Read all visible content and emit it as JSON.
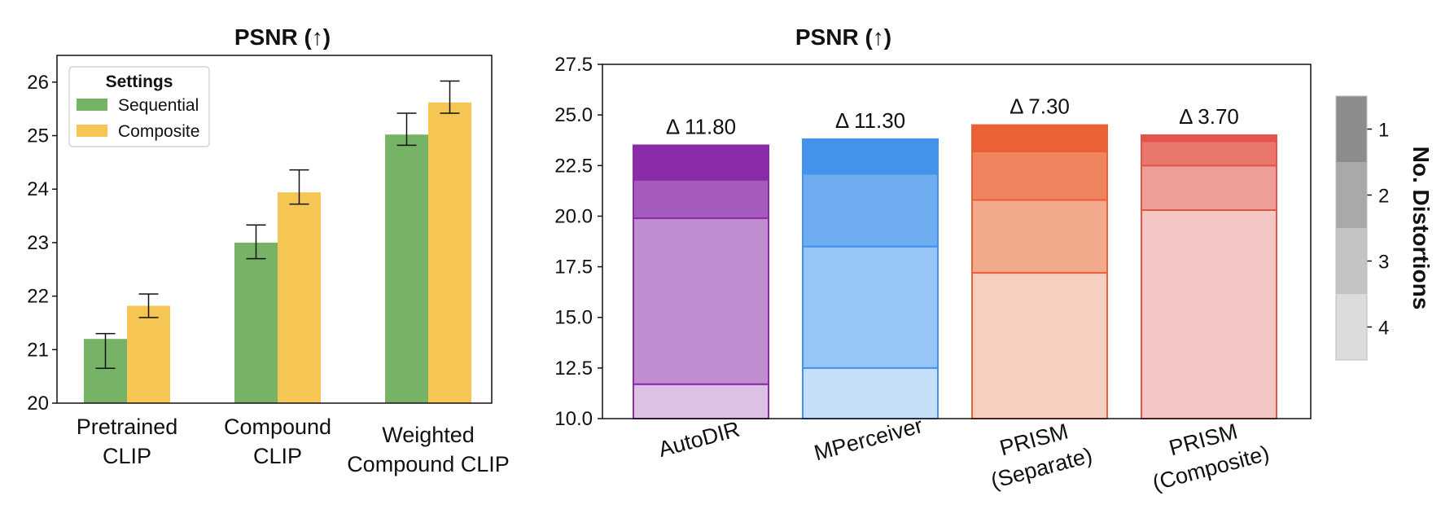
{
  "chart_data": [
    {
      "type": "bar",
      "title": "PSNR (↑)",
      "categories": [
        "Pretrained\nCLIP",
        "Compound\nCLIP",
        "Weighted\nCompound CLIP"
      ],
      "series": [
        {
          "name": "Sequential",
          "values": [
            21.2,
            23.0,
            25.02
          ],
          "err_low": [
            0.55,
            0.3,
            0.2
          ],
          "err_high": [
            0.1,
            0.33,
            0.4
          ],
          "color": "#76b366"
        },
        {
          "name": "Composite",
          "values": [
            21.82,
            23.94,
            25.62
          ],
          "err_low": [
            0.22,
            0.22,
            0.2
          ],
          "err_high": [
            0.22,
            0.42,
            0.4
          ],
          "color": "#f5c653"
        }
      ],
      "ylim": [
        20,
        26.5
      ],
      "yticks": [
        20,
        21,
        22,
        23,
        24,
        25,
        26
      ],
      "legend": {
        "title": "Settings",
        "position": "top-left"
      },
      "xlabel": "",
      "ylabel": ""
    },
    {
      "type": "bar",
      "stacked": true,
      "title": "PSNR (↑)",
      "categories": [
        "AutoDIR",
        "MPerceiver",
        "PRISM\n(Separate)",
        "PRISM\n(Composite)"
      ],
      "segment_labels": [
        "4",
        "3",
        "2",
        "1"
      ],
      "boundaries": [
        [
          11.7,
          19.9,
          21.8,
          23.5
        ],
        [
          12.5,
          18.5,
          22.1,
          23.8
        ],
        [
          17.2,
          20.8,
          23.2,
          24.5
        ],
        [
          20.3,
          22.5,
          23.7,
          24.0
        ]
      ],
      "deltas": [
        "Δ 11.80",
        "Δ 11.30",
        "Δ 7.30",
        "Δ 3.70"
      ],
      "ylim": [
        10,
        27.5
      ],
      "yticks": [
        "10.0",
        "12.5",
        "15.0",
        "17.5",
        "20.0",
        "22.5",
        "25.0",
        "27.5"
      ],
      "colors": [
        [
          "#dcc1e4",
          "#c08ed0",
          "#a55bbb",
          "#8b2ba7"
        ],
        [
          "#c4dff7",
          "#97c5f5",
          "#6cacef",
          "#4592ea"
        ],
        [
          "#f6cfc0",
          "#f3a98c",
          "#f0845f",
          "#eb6036"
        ],
        [
          "#f4c7c5",
          "#ee9e98",
          "#e9776c",
          "#e3554a"
        ]
      ],
      "edge_colors": [
        "#8b2ba7",
        "#4592ea",
        "#eb6036",
        "#e3554a"
      ],
      "colorbar": {
        "label": "No. Distortions",
        "ticks": [
          "1",
          "2",
          "3",
          "4"
        ],
        "colors": [
          "#8c8c8c",
          "#a9a9a9",
          "#c4c4c4",
          "#dcdcdc"
        ]
      },
      "xlabel": "",
      "ylabel": ""
    }
  ]
}
